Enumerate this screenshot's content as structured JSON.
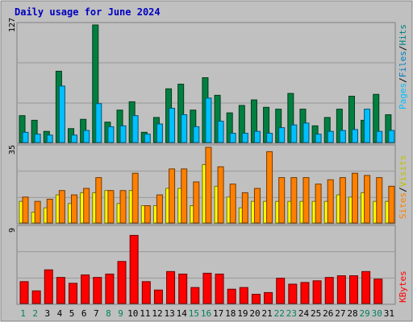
{
  "title": "Daily usage for June 2024",
  "colors": {
    "background": "#c0c0c0",
    "grid": "#999999",
    "hits": "#008040",
    "files": "#00c0ff",
    "sites": "#ff8000",
    "visits": "#ffff00",
    "kbytes": "#ff0000",
    "title": "#0000c0",
    "weekend_day": "#00805c",
    "weekday": "#000000"
  },
  "right_labels": {
    "top": [
      "Hits",
      "/",
      "Files",
      "/",
      "Pages"
    ],
    "mid": [
      "Visits",
      "/",
      "Sites"
    ],
    "bottom": [
      "KBytes"
    ]
  },
  "chart_data": [
    {
      "type": "bar",
      "panel": "hits-files-pages",
      "axis_max_label": "127",
      "ylim": [
        0,
        127
      ],
      "categories": [
        "1",
        "2",
        "3",
        "4",
        "5",
        "6",
        "7",
        "8",
        "9",
        "10",
        "11",
        "12",
        "13",
        "14",
        "15",
        "16",
        "17",
        "18",
        "19",
        "20",
        "21",
        "22",
        "23",
        "24",
        "25",
        "26",
        "27",
        "28",
        "29",
        "30",
        "31"
      ],
      "weekend_days": [
        "1",
        "2",
        "8",
        "9",
        "15",
        "16",
        "22",
        "23",
        "29",
        "30"
      ],
      "series": [
        {
          "name": "Hits",
          "values": [
            29,
            24,
            12,
            77,
            15,
            25,
            127,
            22,
            35,
            44,
            11,
            27,
            58,
            63,
            35,
            70,
            51,
            32,
            40,
            46,
            38,
            36,
            53,
            36,
            18,
            27,
            36,
            50,
            24,
            52,
            30
          ]
        },
        {
          "name": "Files",
          "values": [
            11,
            9,
            8,
            61,
            8,
            13,
            42,
            17,
            18,
            29,
            9,
            20,
            37,
            30,
            17,
            48,
            23,
            10,
            10,
            12,
            10,
            16,
            19,
            21,
            9,
            12,
            13,
            14,
            36,
            12,
            13
          ]
        },
        {
          "name": "Pages",
          "values": [
            0,
            0,
            0,
            0,
            0,
            0,
            0,
            0,
            0,
            0,
            0,
            0,
            0,
            0,
            0,
            0,
            0,
            0,
            0,
            0,
            0,
            0,
            0,
            0,
            0,
            0,
            0,
            0,
            0,
            0,
            0
          ]
        }
      ]
    },
    {
      "type": "bar",
      "panel": "visits-sites",
      "axis_max_label": "35",
      "ylim": [
        0,
        35
      ],
      "categories": [
        "1",
        "2",
        "3",
        "4",
        "5",
        "6",
        "7",
        "8",
        "9",
        "10",
        "11",
        "12",
        "13",
        "14",
        "15",
        "16",
        "17",
        "18",
        "19",
        "20",
        "21",
        "22",
        "23",
        "24",
        "25",
        "26",
        "27",
        "28",
        "29",
        "30",
        "31"
      ],
      "series": [
        {
          "name": "Visits",
          "values": [
            10,
            5,
            7,
            13,
            9,
            14,
            14,
            15,
            9,
            15,
            8,
            8,
            16,
            16,
            8,
            27,
            17,
            12,
            7,
            10,
            10,
            10,
            10,
            10,
            10,
            10,
            13,
            12,
            14,
            10,
            10
          ]
        },
        {
          "name": "Sites",
          "values": [
            12,
            10,
            11,
            15,
            13,
            16,
            21,
            15,
            15,
            23,
            8,
            13,
            25,
            25,
            19,
            35,
            26,
            18,
            14,
            16,
            33,
            21,
            21,
            21,
            18,
            20,
            21,
            23,
            22,
            21,
            17
          ]
        }
      ]
    },
    {
      "type": "bar",
      "panel": "kbytes",
      "axis_max_label": "9",
      "ylim": [
        0,
        9
      ],
      "categories": [
        "1",
        "2",
        "3",
        "4",
        "5",
        "6",
        "7",
        "8",
        "9",
        "10",
        "11",
        "12",
        "13",
        "14",
        "15",
        "16",
        "17",
        "18",
        "19",
        "20",
        "21",
        "22",
        "23",
        "24",
        "25",
        "26",
        "27",
        "28",
        "29",
        "30",
        "31"
      ],
      "series": [
        {
          "name": "KBytes",
          "values": [
            2.6,
            1.5,
            4.0,
            3.1,
            2.4,
            3.4,
            3.1,
            3.5,
            5.0,
            8.1,
            2.6,
            1.6,
            3.8,
            3.5,
            1.9,
            3.6,
            3.5,
            1.7,
            1.9,
            1.1,
            1.3,
            3.0,
            2.3,
            2.5,
            2.7,
            3.1,
            3.3,
            3.3,
            3.8,
            2.9,
            0
          ]
        }
      ]
    }
  ]
}
